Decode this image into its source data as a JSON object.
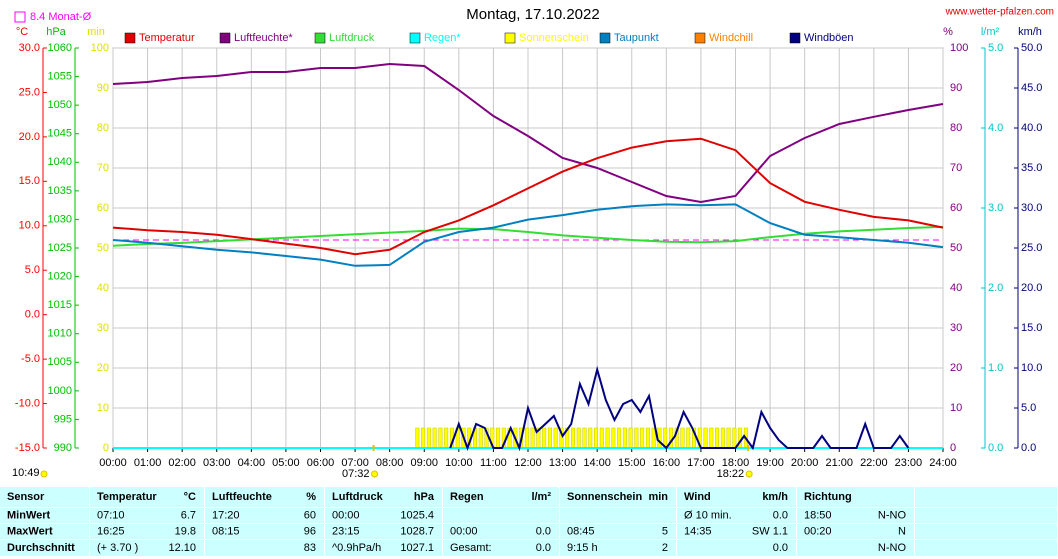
{
  "chart_data": {
    "type": "line",
    "title": "Montag, 17.10.2022",
    "site": "www.wetter-pfalzen.com",
    "monthly_mean": {
      "value": 8.4,
      "label": "8.4 Monat-Ø",
      "axis": "°C",
      "color": "#ff00ff"
    },
    "updated": "10:49",
    "sun_events": [
      {
        "x": 452,
        "label": "07:32"
      },
      {
        "x": 1102,
        "label": "18:22"
      }
    ],
    "xlim": [
      0,
      1440
    ],
    "xticks": [
      {
        "value": 0,
        "label": "00:00"
      },
      {
        "value": 60,
        "label": "01:00"
      },
      {
        "value": 120,
        "label": "02:00"
      },
      {
        "value": 180,
        "label": "03:00"
      },
      {
        "value": 240,
        "label": "04:00"
      },
      {
        "value": 300,
        "label": "05:00"
      },
      {
        "value": 360,
        "label": "06:00"
      },
      {
        "value": 420,
        "label": "07:00"
      },
      {
        "value": 480,
        "label": "08:00"
      },
      {
        "value": 540,
        "label": "09:00"
      },
      {
        "value": 600,
        "label": "10:00"
      },
      {
        "value": 660,
        "label": "11:00"
      },
      {
        "value": 720,
        "label": "12:00"
      },
      {
        "value": 780,
        "label": "13:00"
      },
      {
        "value": 840,
        "label": "14:00"
      },
      {
        "value": 900,
        "label": "15:00"
      },
      {
        "value": 960,
        "label": "16:00"
      },
      {
        "value": 1020,
        "label": "17:00"
      },
      {
        "value": 1080,
        "label": "18:00"
      },
      {
        "value": 1140,
        "label": "19:00"
      },
      {
        "value": 1200,
        "label": "20:00"
      },
      {
        "value": 1260,
        "label": "21:00"
      },
      {
        "value": 1320,
        "label": "22:00"
      },
      {
        "value": 1380,
        "label": "23:00"
      },
      {
        "value": 1440,
        "label": "24:00"
      }
    ],
    "x": [
      0,
      60,
      120,
      180,
      240,
      300,
      360,
      420,
      480,
      540,
      600,
      660,
      720,
      780,
      840,
      900,
      960,
      1020,
      1080,
      1140,
      1200,
      1260,
      1320,
      1380,
      1440
    ],
    "grid": true,
    "axes": [
      {
        "label": "°C",
        "color": "#ff0000",
        "lim": [
          -15,
          30
        ],
        "ticks": [
          {
            "value": 30,
            "label": "30.0"
          },
          {
            "value": 25,
            "label": "25.0"
          },
          {
            "value": 20,
            "label": "20.0"
          },
          {
            "value": 15,
            "label": "15.0"
          },
          {
            "value": 10,
            "label": "10.0"
          },
          {
            "value": 5,
            "label": "5.0"
          },
          {
            "value": 0,
            "label": "0.0"
          },
          {
            "value": -5,
            "label": "-5.0"
          },
          {
            "value": -10,
            "label": "-10.0"
          },
          {
            "value": -15,
            "label": "-15.0"
          }
        ]
      },
      {
        "label": "hPa",
        "color": "#00c000",
        "lim": [
          990,
          1060
        ],
        "ticks": [
          1060,
          1055,
          1050,
          1045,
          1040,
          1035,
          1030,
          1025,
          1020,
          1015,
          1010,
          1005,
          1000,
          995,
          990
        ]
      },
      {
        "label": "min",
        "color": "#e0e000",
        "lim": [
          0,
          100
        ],
        "ticks": [
          100,
          90,
          80,
          70,
          60,
          50,
          40,
          30,
          20,
          10,
          0
        ]
      },
      {
        "label": "%",
        "color": "#800080",
        "lim": [
          0,
          100
        ],
        "ticks": [
          100,
          90,
          80,
          70,
          60,
          50,
          40,
          30,
          20,
          10,
          0
        ],
        "grid": true
      },
      {
        "label": "l/m²",
        "color": "#00c8c8",
        "lim": [
          0,
          5
        ],
        "ticks": [
          {
            "value": 5,
            "label": "5.0"
          },
          {
            "value": 4,
            "label": "4.0"
          },
          {
            "value": 3,
            "label": "3.0"
          },
          {
            "value": 2,
            "label": "2.0"
          },
          {
            "value": 1,
            "label": "1.0"
          },
          {
            "value": 0,
            "label": "0.0"
          }
        ]
      },
      {
        "label": "km/h",
        "color": "#000080",
        "lim": [
          0,
          50
        ],
        "ticks": [
          {
            "value": 50,
            "label": "50.0"
          },
          {
            "value": 45,
            "label": "45.0"
          },
          {
            "value": 40,
            "label": "40.0"
          },
          {
            "value": 35,
            "label": "35.0"
          },
          {
            "value": 30,
            "label": "30.0"
          },
          {
            "value": 25,
            "label": "25.0"
          },
          {
            "value": 20,
            "label": "20.0"
          },
          {
            "value": 15,
            "label": "15.0"
          },
          {
            "value": 10,
            "label": "10.0"
          },
          {
            "value": 5,
            "label": "5.0"
          },
          {
            "value": 0,
            "label": "0.0"
          }
        ]
      }
    ],
    "series": [
      {
        "name": "Temperatur",
        "color": "#e00000",
        "axis": "°C",
        "values": [
          9.8,
          9.5,
          9.3,
          9.0,
          8.5,
          8.0,
          7.5,
          6.8,
          7.3,
          9.3,
          10.6,
          12.3,
          14.2,
          16.1,
          17.6,
          18.8,
          19.5,
          19.8,
          18.5,
          14.8,
          12.7,
          11.8,
          11.0,
          10.6,
          9.8
        ]
      },
      {
        "name": "Luftfeuchte*",
        "color": "#800080",
        "axis": "%",
        "values": [
          91,
          91.5,
          92.5,
          93,
          94,
          94,
          95,
          95,
          96,
          95.5,
          89.5,
          83,
          78,
          72.5,
          70,
          66.5,
          63,
          61.5,
          63,
          73,
          77.5,
          81,
          82.8,
          84.5,
          86
        ]
      },
      {
        "name": "Luftdruck",
        "color": "#33dd33",
        "axis": "hPa",
        "values": [
          1025.4,
          1025.7,
          1025.9,
          1026.2,
          1026.5,
          1026.8,
          1027.1,
          1027.4,
          1027.7,
          1028.0,
          1028.4,
          1028.3,
          1027.8,
          1027.2,
          1026.8,
          1026.4,
          1026.1,
          1026.0,
          1026.2,
          1026.9,
          1027.5,
          1027.9,
          1028.2,
          1028.5,
          1028.7
        ]
      },
      {
        "name": "Regen*",
        "color": "#00ffff",
        "axis": "l/m²",
        "values": [
          0,
          0,
          0,
          0,
          0,
          0,
          0,
          0,
          0,
          0,
          0,
          0,
          0,
          0,
          0,
          0,
          0,
          0,
          0,
          0,
          0,
          0,
          0,
          0,
          0
        ]
      },
      {
        "name": "Sonnenschein",
        "color": "#ffff00",
        "axis": "min",
        "type": "bar",
        "x": [
          525,
          535,
          545,
          555,
          565,
          575,
          585,
          595,
          605,
          615,
          625,
          635,
          645,
          655,
          665,
          675,
          685,
          695,
          705,
          715,
          725,
          735,
          745,
          755,
          765,
          775,
          785,
          795,
          805,
          815,
          825,
          835,
          845,
          855,
          865,
          875,
          885,
          895,
          905,
          915,
          925,
          935,
          945,
          955,
          965,
          975,
          985,
          995,
          1005,
          1015,
          1025,
          1035,
          1045,
          1055,
          1065,
          1075,
          1085,
          1095
        ],
        "values": [
          5,
          5,
          5,
          5,
          5,
          5,
          5,
          5,
          5,
          5,
          5,
          5,
          5,
          5,
          5,
          5,
          5,
          5,
          5,
          5,
          5,
          5,
          5,
          5,
          5,
          5,
          5,
          5,
          5,
          5,
          5,
          5,
          5,
          5,
          5,
          5,
          5,
          5,
          5,
          5,
          5,
          5,
          5,
          5,
          5,
          5,
          5,
          5,
          5,
          5,
          5,
          5,
          5,
          5,
          5,
          5,
          5,
          5
        ]
      },
      {
        "name": "Taupunkt",
        "color": "#0080c0",
        "axis": "°C",
        "values": [
          8.4,
          8.1,
          7.7,
          7.3,
          7.0,
          6.6,
          6.2,
          5.5,
          5.6,
          8.2,
          9.3,
          9.8,
          10.7,
          11.2,
          11.8,
          12.2,
          12.4,
          12.3,
          12.4,
          10.3,
          9.0,
          8.7,
          8.4,
          8.1,
          7.6
        ]
      },
      {
        "name": "Windchill",
        "color": "#ff8000",
        "axis": "°C"
      },
      {
        "name": "Windböen",
        "color": "#000080",
        "axis": "km/h",
        "x": [
          585,
          600,
          615,
          630,
          645,
          660,
          675,
          690,
          705,
          720,
          735,
          750,
          765,
          780,
          795,
          810,
          825,
          840,
          855,
          870,
          885,
          900,
          915,
          930,
          945,
          960,
          975,
          990,
          1005,
          1020,
          1035,
          1050,
          1065,
          1080,
          1095,
          1110,
          1125,
          1140,
          1155,
          1170,
          1185,
          1200,
          1215,
          1230,
          1245,
          1260,
          1275,
          1290,
          1305,
          1320,
          1335,
          1350,
          1365,
          1380
        ],
        "values": [
          0,
          3,
          0,
          3,
          2.5,
          0,
          0,
          2.5,
          0,
          5,
          2,
          3,
          4,
          1.5,
          3,
          8,
          5.5,
          9.8,
          6,
          3.5,
          5.5,
          6,
          4.5,
          6.5,
          1,
          0,
          1.5,
          4.5,
          2.5,
          0,
          0,
          0,
          0,
          0,
          1.5,
          0,
          4.5,
          2.5,
          1,
          0,
          0,
          0,
          0,
          1.5,
          0,
          0,
          0,
          0,
          3,
          0,
          0,
          0,
          1.5,
          0
        ]
      }
    ]
  },
  "table": {
    "header": [
      {
        "l": "Sensor"
      },
      {
        "l": "Temperatur",
        "r": "°C"
      },
      {
        "l": "Luftfeuchte",
        "r": "%"
      },
      {
        "l": "Luftdruck",
        "r": "hPa"
      },
      {
        "l": "Regen",
        "r": "l/m²"
      },
      {
        "l": "Sonnenschein",
        "r": "min"
      },
      {
        "l": "Wind",
        "r": "km/h"
      },
      {
        "l": "Richtung"
      }
    ],
    "rows": [
      [
        {
          "l": "MinWert"
        },
        {
          "l": "07:10",
          "r": "6.7"
        },
        {
          "l": "17:20",
          "r": "60"
        },
        {
          "l": "00:00",
          "r": "1025.4"
        },
        {},
        {},
        {
          "l": "Ø 10 min.",
          "r": "0.0"
        },
        {
          "l": "18:50",
          "r": "N-NO"
        }
      ],
      [
        {
          "l": "MaxWert"
        },
        {
          "l": "16:25",
          "r": "19.8"
        },
        {
          "l": "08:15",
          "r": "96"
        },
        {
          "l": "23:15",
          "r": "1028.7"
        },
        {
          "l": "00:00",
          "r": "0.0"
        },
        {
          "l": "08:45",
          "r": "5"
        },
        {
          "l": "14:35",
          "r": "SW 1.1"
        },
        {
          "l": "00:20",
          "r": "N"
        }
      ],
      [
        {
          "l": "Durchschnitt"
        },
        {
          "l": "(+ 3.70 )",
          "r": "12.10"
        },
        {
          "r": "83"
        },
        {
          "l": "^0.9hPa/h",
          "r": "1027.1"
        },
        {
          "l": "Gesamt:",
          "r": "0.0"
        },
        {
          "l": "9:15 h",
          "r": "2"
        },
        {
          "r": "0.0"
        },
        {
          "r": "N-NO"
        }
      ]
    ]
  }
}
